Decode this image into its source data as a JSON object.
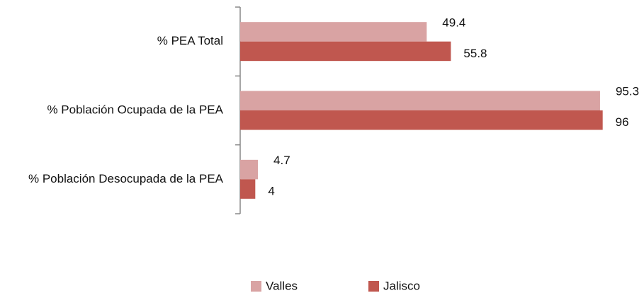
{
  "chart_data": {
    "type": "barh",
    "categories": [
      "% PEA Total",
      "% Población Ocupada de la PEA",
      "% Población Desocupada de la PEA"
    ],
    "series": [
      {
        "name": "Valles",
        "color": "#d9a3a3",
        "values": [
          49.4,
          95.3,
          4.7
        ]
      },
      {
        "name": "Jalisco",
        "color": "#c0574f",
        "values": [
          55.8,
          96,
          4
        ]
      }
    ],
    "xlim": [
      0,
      100
    ],
    "legend": "bottom"
  }
}
